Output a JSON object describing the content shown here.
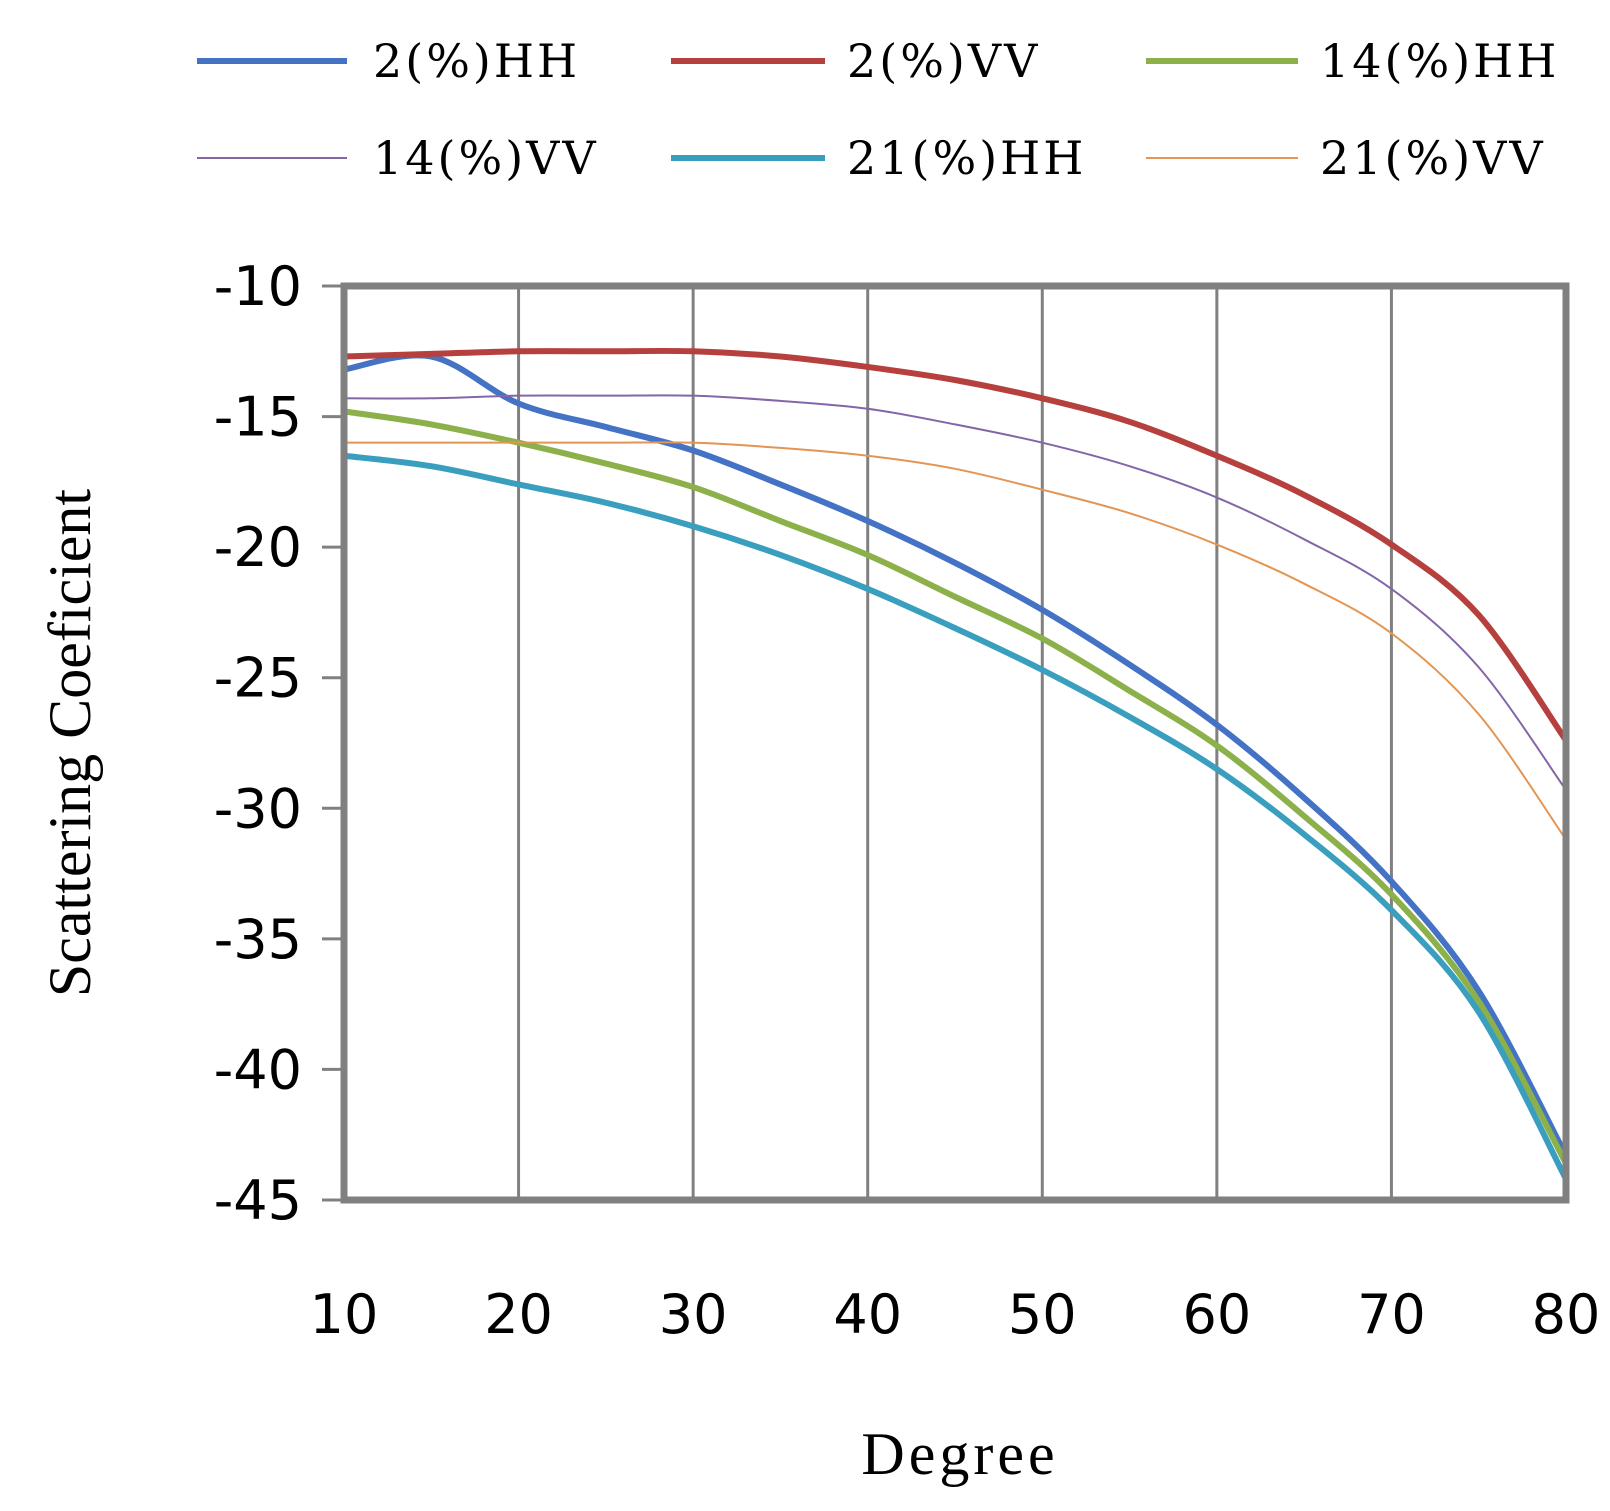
{
  "chart_data": {
    "type": "line",
    "title": "",
    "xlabel": "Degree",
    "ylabel": "Scattering Coeficient",
    "xlim": [
      10,
      80
    ],
    "ylim": [
      -45,
      -10
    ],
    "x_ticks": [
      "10",
      "20",
      "30",
      "40",
      "50",
      "60",
      "70",
      "80"
    ],
    "y_ticks": [
      "-10",
      "-15",
      "-20",
      "-25",
      "-30",
      "-35",
      "-40",
      "-45"
    ],
    "grid": "vertical",
    "legend_position": "top",
    "x": [
      10,
      15,
      20,
      25,
      30,
      35,
      40,
      45,
      50,
      55,
      60,
      65,
      70,
      75,
      80
    ],
    "series": [
      {
        "name": "2(%)HH",
        "color": "#4472c4",
        "width": 6,
        "values": [
          -13.2,
          -12.7,
          -14.5,
          -15.4,
          -16.3,
          -17.6,
          -19.0,
          -20.6,
          -22.4,
          -24.5,
          -26.8,
          -29.6,
          -32.8,
          -37.0,
          -43.3
        ]
      },
      {
        "name": "2(%)VV",
        "color": "#b5403d",
        "width": 6,
        "values": [
          -12.7,
          -12.6,
          -12.5,
          -12.5,
          -12.5,
          -12.7,
          -13.1,
          -13.6,
          -14.3,
          -15.2,
          -16.5,
          -18.0,
          -19.9,
          -22.6,
          -27.4
        ]
      },
      {
        "name": "14(%)HH",
        "color": "#8cb04a",
        "width": 6,
        "values": [
          -14.8,
          -15.3,
          -16.0,
          -16.8,
          -17.7,
          -19.0,
          -20.3,
          -21.9,
          -23.5,
          -25.5,
          -27.6,
          -30.3,
          -33.3,
          -37.4,
          -43.6
        ]
      },
      {
        "name": "14(%)VV",
        "color": "#8466a8",
        "width": 2,
        "values": [
          -14.3,
          -14.3,
          -14.2,
          -14.2,
          -14.2,
          -14.4,
          -14.7,
          -15.3,
          -16.0,
          -16.9,
          -18.1,
          -19.7,
          -21.6,
          -24.6,
          -29.3
        ]
      },
      {
        "name": "21(%)HH",
        "color": "#3a9fbe",
        "width": 6,
        "values": [
          -16.5,
          -16.9,
          -17.6,
          -18.3,
          -19.2,
          -20.3,
          -21.6,
          -23.1,
          -24.7,
          -26.5,
          -28.5,
          -31.0,
          -33.9,
          -37.8,
          -44.2
        ]
      },
      {
        "name": "21(%)VV",
        "color": "#e39553",
        "width": 2,
        "values": [
          -16.0,
          -16.0,
          -16.0,
          -16.0,
          -16.0,
          -16.2,
          -16.5,
          -17.0,
          -17.8,
          -18.7,
          -19.9,
          -21.4,
          -23.3,
          -26.4,
          -31.2
        ]
      }
    ]
  }
}
